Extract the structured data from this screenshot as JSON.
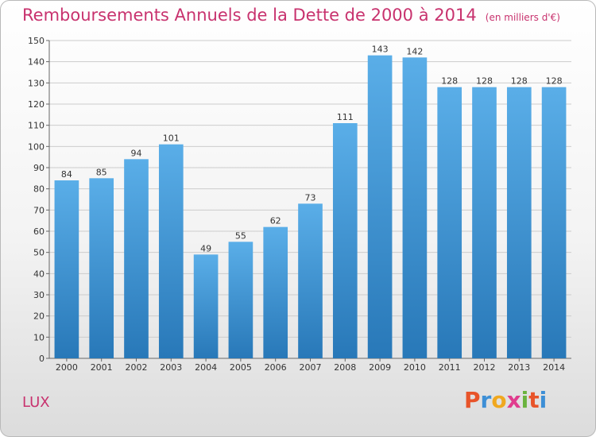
{
  "header": {
    "title": "Remboursements Annuels de la Dette de 2000 à 2014",
    "subtitle": "(en milliers d'€)"
  },
  "footer": {
    "commune": "LUX",
    "logo_text": "Proxiti",
    "logo_colors": [
      "#e8542a",
      "#3d8fd6",
      "#f0a81f",
      "#e03c8e",
      "#6ab33e",
      "#e8542a",
      "#3d8fd6"
    ]
  },
  "chart_data": {
    "type": "bar",
    "categories": [
      "2000",
      "2001",
      "2002",
      "2003",
      "2004",
      "2005",
      "2006",
      "2007",
      "2008",
      "2009",
      "2010",
      "2011",
      "2012",
      "2013",
      "2014"
    ],
    "values": [
      84,
      85,
      94,
      101,
      49,
      55,
      62,
      73,
      111,
      143,
      142,
      128,
      128,
      128,
      128
    ],
    "data_labels": [
      "84",
      "85",
      "94",
      "101",
      "49",
      "55",
      "62",
      "73",
      "111",
      "143",
      "142",
      "128",
      "128",
      "128",
      "128"
    ],
    "title": "Remboursements Annuels de la Dette de 2000 à 2014",
    "subtitle": "(en milliers d'€)",
    "xlabel": "",
    "ylabel": "",
    "ylim": [
      0,
      150
    ],
    "yticks": [
      "0",
      "10",
      "20",
      "30",
      "40",
      "50",
      "60",
      "70",
      "80",
      "90",
      "100",
      "110",
      "120",
      "130",
      "140",
      "150"
    ],
    "grid": true,
    "bar_color_top": "#5aaee8",
    "bar_color_bottom": "#2878b8",
    "grid_color": "#cccccc"
  }
}
